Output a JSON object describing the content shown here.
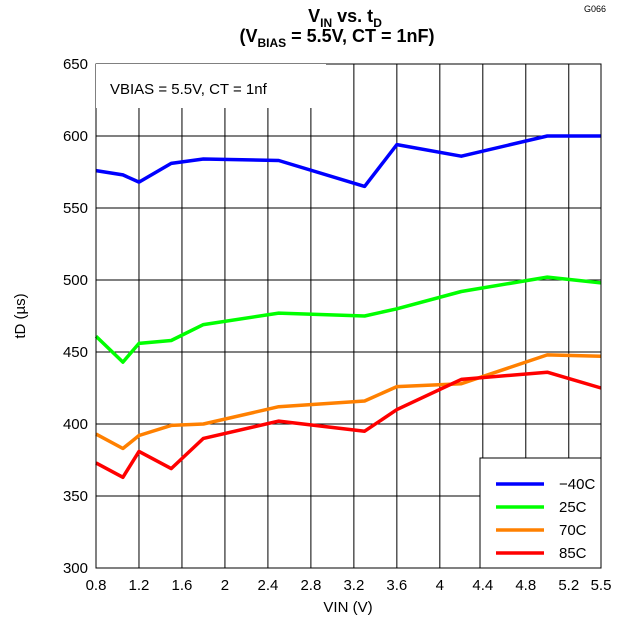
{
  "corner_code": "G066",
  "chart_data": {
    "type": "line",
    "title_line1": {
      "main": "V",
      "sub1": "IN",
      "mid": " vs. t",
      "sub2": "D"
    },
    "title_line2": {
      "open": "(V",
      "sub": "BIAS",
      "rest": " = 5.5V, CT = 1nF)"
    },
    "annotation": "VBIAS = 5.5V, CT = 1nf",
    "xlabel": "VIN (V)",
    "ylabel": "tD (µs)",
    "xlim": [
      0.8,
      5.5
    ],
    "ylim": [
      300,
      650
    ],
    "xticks": [
      0.8,
      1.2,
      1.6,
      2,
      2.4,
      2.8,
      3.2,
      3.6,
      4,
      4.4,
      4.8,
      5.2,
      5.5
    ],
    "xtick_labels": [
      "0.8",
      "1.2",
      "1.6",
      "2",
      "2.4",
      "2.8",
      "3.2",
      "3.6",
      "4",
      "4.4",
      "4.8",
      "5.2",
      "5.5"
    ],
    "yticks": [
      300,
      350,
      400,
      450,
      500,
      550,
      600,
      650
    ],
    "ytick_labels": [
      "300",
      "350",
      "400",
      "450",
      "500",
      "550",
      "600",
      "650"
    ],
    "grid": true,
    "legend_position": "bottom-right",
    "series": [
      {
        "name": "−40C",
        "color": "#0000ff",
        "x": [
          0.8,
          1.05,
          1.2,
          1.5,
          1.8,
          2.5,
          3.3,
          3.6,
          4.2,
          5.0,
          5.5
        ],
        "values": [
          576,
          573,
          568,
          581,
          584,
          583,
          565,
          594,
          586,
          600,
          600
        ]
      },
      {
        "name": "25C",
        "color": "#00ff00",
        "x": [
          0.8,
          1.05,
          1.2,
          1.5,
          1.8,
          2.5,
          3.3,
          3.6,
          4.2,
          5.0,
          5.5
        ],
        "values": [
          461,
          443,
          456,
          458,
          469,
          477,
          475,
          480,
          492,
          502,
          498
        ]
      },
      {
        "name": "70C",
        "color": "#ff8000",
        "x": [
          0.8,
          1.05,
          1.2,
          1.5,
          1.8,
          2.5,
          3.3,
          3.6,
          4.2,
          5.0,
          5.5
        ],
        "values": [
          393,
          383,
          392,
          399,
          400,
          412,
          416,
          426,
          428,
          448,
          447
        ]
      },
      {
        "name": "85C",
        "color": "#ff0000",
        "x": [
          0.8,
          1.05,
          1.2,
          1.5,
          1.8,
          2.5,
          3.3,
          3.6,
          4.2,
          5.0,
          5.5
        ],
        "values": [
          373,
          363,
          381,
          369,
          390,
          402,
          395,
          410,
          431,
          436,
          425
        ]
      }
    ]
  }
}
